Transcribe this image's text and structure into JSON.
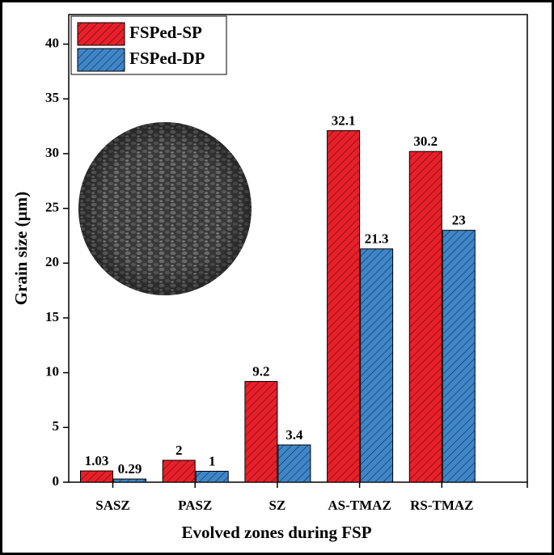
{
  "chart_data": {
    "type": "bar",
    "xlabel": "Evolved zones during FSP",
    "ylabel": "Grain size (µm)",
    "categories": [
      "SASZ",
      "PASZ",
      "SZ",
      "AS-TMAZ",
      "RS-TMAZ"
    ],
    "series": [
      {
        "name": "FSPed-SP",
        "color": "#e8202a",
        "values": [
          1.03,
          2,
          9.2,
          32.1,
          30.2
        ]
      },
      {
        "name": "FSPed-DP",
        "color": "#3f86c8",
        "values": [
          0.29,
          1,
          3.4,
          21.3,
          23
        ]
      }
    ],
    "ylim": [
      0,
      42.7
    ],
    "yticks": [
      0,
      5,
      10,
      15,
      20,
      25,
      30,
      35,
      40
    ],
    "legend": "upper left"
  }
}
